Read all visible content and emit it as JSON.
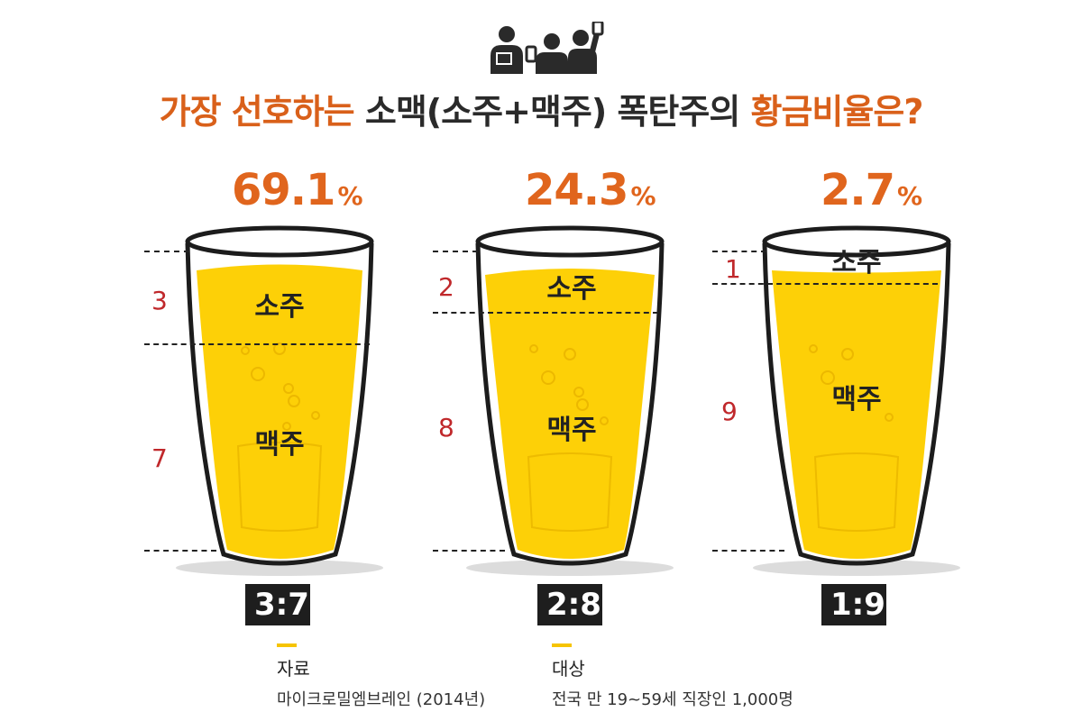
{
  "title": {
    "part1": "가장 선호하는",
    "part2": "소맥(소주+맥주) 폭탄주의",
    "part3": "황금비율은?"
  },
  "glasses": [
    {
      "percent": "69.1",
      "sign": "%",
      "top_label": "소주",
      "bottom_label": "맥주",
      "soju_part": "3",
      "beer_part": "7",
      "ratio": "3:7"
    },
    {
      "percent": "24.3",
      "sign": "%",
      "top_label": "소주",
      "bottom_label": "맥주",
      "soju_part": "2",
      "beer_part": "8",
      "ratio": "2:8"
    },
    {
      "percent": "2.7",
      "sign": "%",
      "top_label": "소주",
      "bottom_label": "맥주",
      "soju_part": "1",
      "beer_part": "9",
      "ratio": "1:9"
    }
  ],
  "source": {
    "label": "자료",
    "value": "마이크로밀엠브레인 (2014년)"
  },
  "target": {
    "label": "대상",
    "value": "전국 만 19~59세 직장인 1,000명"
  },
  "colors": {
    "accent": "#e0651d",
    "beer": "#fdd007",
    "part_number": "#c0282b",
    "ratio_box": "#1e1e1e"
  },
  "icons": [
    "people-toast-icon",
    "beer-glass-icon"
  ]
}
